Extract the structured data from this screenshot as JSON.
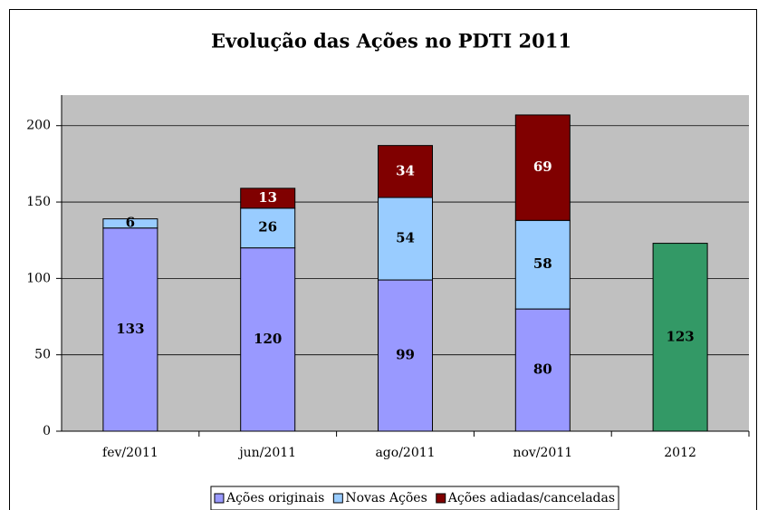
{
  "chart_data": {
    "type": "stacked_bar",
    "title": "Evolução das Ações no PDTI 2011",
    "categories": [
      "fev/2011",
      "jun/2011",
      "ago/2011",
      "nov/2011",
      "2012"
    ],
    "series": [
      {
        "name": "Ações originais",
        "color": "#9999ff",
        "point_colors": [
          "#9999ff",
          "#9999ff",
          "#9999ff",
          "#9999ff",
          "#339966"
        ],
        "label_color": "#000000",
        "values": [
          133,
          120,
          99,
          80,
          123
        ]
      },
      {
        "name": "Novas Ações",
        "color": "#99ccff",
        "label_color": "#000000",
        "values": [
          6,
          26,
          54,
          58,
          null
        ]
      },
      {
        "name": "Ações adiadas/canceladas",
        "color": "#800000",
        "label_color": "#ffffff",
        "values": [
          null,
          13,
          34,
          69,
          null
        ]
      }
    ],
    "ylim": [
      0,
      220
    ],
    "yticks": [
      0,
      50,
      100,
      150,
      200
    ],
    "grid": true,
    "plot_background": "#c0c0c0",
    "legend": "bottom"
  }
}
